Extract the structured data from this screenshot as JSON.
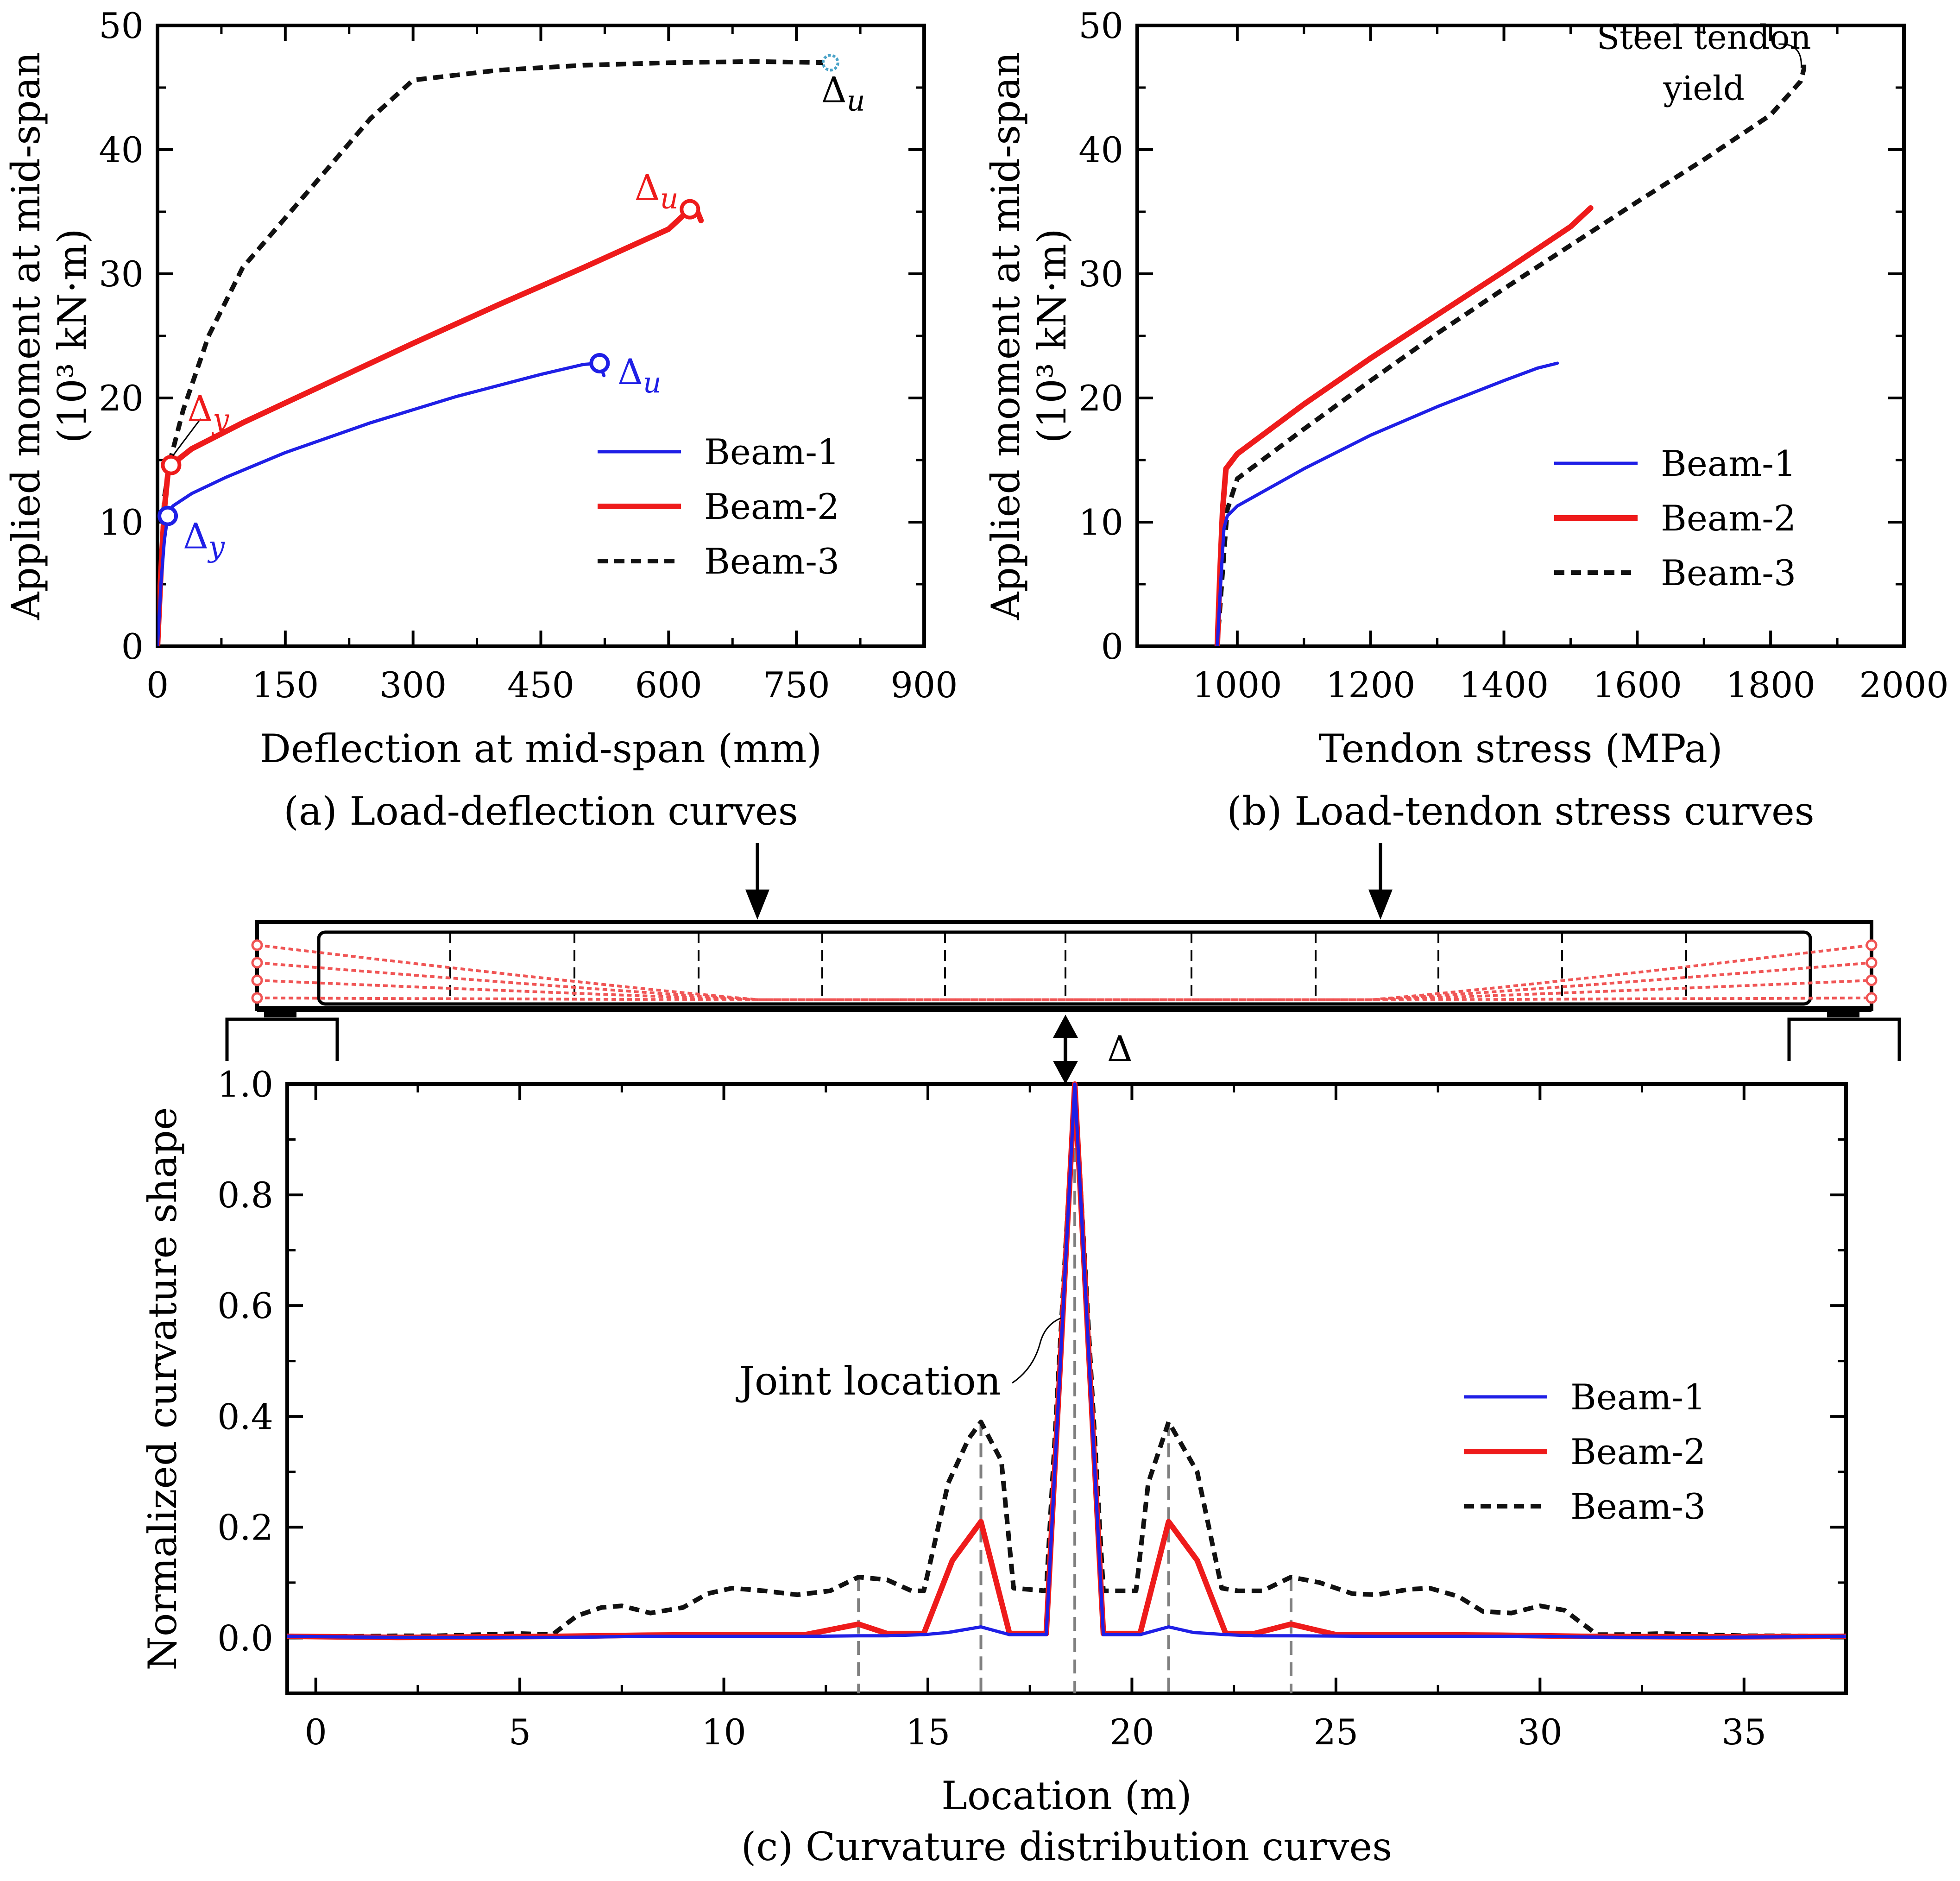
{
  "colors": {
    "beam1": "#1f1fe6",
    "beam2": "#ee1b1b",
    "beam3": "#111111",
    "tendon": "#f05555",
    "grid_dash": "#808080"
  },
  "chart_data": [
    {
      "id": "a",
      "type": "line",
      "caption": "(a) Load-deflection curves",
      "xlabel": "Deflection at mid-span (mm)",
      "ylabel": [
        "Applied moment at mid-span",
        "(10³ kN·m)"
      ],
      "xlim": [
        0,
        900
      ],
      "ylim": [
        0,
        50
      ],
      "xticks": [
        0,
        150,
        300,
        450,
        600,
        750,
        900
      ],
      "yticks": [
        0,
        10,
        20,
        30,
        40,
        50
      ],
      "legend_position": "right",
      "series": [
        {
          "name": "Beam-1",
          "style": "solid",
          "x": [
            0,
            4,
            8,
            12,
            18,
            40,
            80,
            150,
            250,
            350,
            450,
            500,
            519,
            524
          ],
          "y": [
            0,
            5,
            8.5,
            10.5,
            11.3,
            12.3,
            13.6,
            15.6,
            18.0,
            20.1,
            21.9,
            22.7,
            22.8,
            21.8
          ]
        },
        {
          "name": "Beam-2",
          "style": "solid",
          "x": [
            0,
            4,
            8,
            12,
            16,
            40,
            100,
            200,
            300,
            400,
            500,
            600,
            625,
            632,
            638
          ],
          "y": [
            0,
            6,
            11,
            13.8,
            14.6,
            15.9,
            18.0,
            21.2,
            24.4,
            27.5,
            30.5,
            33.6,
            35.2,
            35.3,
            34.3
          ]
        },
        {
          "name": "Beam-3",
          "style": "dashed",
          "x": [
            0,
            4,
            8,
            15,
            30,
            60,
            100,
            150,
            200,
            250,
            300,
            400,
            500,
            600,
            700,
            790
          ],
          "y": [
            0,
            6,
            12,
            15,
            19,
            25,
            30.5,
            34.5,
            38.5,
            42.5,
            45.6,
            46.4,
            46.8,
            47.0,
            47.1,
            47.0
          ]
        }
      ],
      "annotations": [
        {
          "text": "Δu",
          "series": "Beam-3",
          "x": 790,
          "y": 47.0
        },
        {
          "text": "Δu",
          "series": "Beam-2",
          "x": 625,
          "y": 35.2
        },
        {
          "text": "Δu",
          "series": "Beam-1",
          "x": 519,
          "y": 22.8
        },
        {
          "text": "Δy",
          "series": "Beam-2",
          "x": 16,
          "y": 14.6
        },
        {
          "text": "Δy",
          "series": "Beam-1",
          "x": 12,
          "y": 10.5
        }
      ]
    },
    {
      "id": "b",
      "type": "line",
      "caption": "(b) Load-tendon stress curves",
      "xlabel": "Tendon stress (MPa)",
      "ylabel": [
        "Applied moment at mid-span",
        "(10³ kN·m)"
      ],
      "xlim": [
        850,
        2000
      ],
      "ylim": [
        0,
        50
      ],
      "xticks": [
        1000,
        1200,
        1400,
        1600,
        1800,
        2000
      ],
      "yticks": [
        0,
        10,
        20,
        30,
        40,
        50
      ],
      "legend_position": "right",
      "series": [
        {
          "name": "Beam-1",
          "style": "solid",
          "x": [
            970,
            975,
            980,
            985,
            1000,
            1100,
            1200,
            1300,
            1400,
            1450,
            1480
          ],
          "y": [
            0,
            5,
            9.5,
            10.5,
            11.3,
            14.3,
            17.0,
            19.3,
            21.4,
            22.4,
            22.8
          ]
        },
        {
          "name": "Beam-2",
          "style": "solid",
          "x": [
            970,
            974,
            978,
            983,
            1000,
            1100,
            1200,
            1300,
            1400,
            1500,
            1530
          ],
          "y": [
            0,
            6,
            11,
            14.3,
            15.5,
            19.5,
            23.2,
            26.7,
            30.2,
            33.8,
            35.3
          ]
        },
        {
          "name": "Beam-3",
          "style": "dashed",
          "x": [
            970,
            978,
            985,
            1000,
            1050,
            1100,
            1200,
            1300,
            1400,
            1500,
            1600,
            1700,
            1800,
            1845,
            1850,
            1850
          ],
          "y": [
            0,
            6,
            11,
            13.5,
            15.5,
            17.5,
            21.4,
            25.2,
            28.8,
            32.3,
            35.8,
            39.2,
            42.8,
            45.5,
            46.5,
            47.2
          ]
        }
      ],
      "annotations": [
        {
          "text": [
            "Steel tendon",
            "yield"
          ],
          "series": "Beam-3",
          "x": 1848,
          "y": 47.0
        }
      ]
    },
    {
      "id": "c",
      "type": "line",
      "caption": "(c) Curvature distribution curves",
      "xlabel": "Location (m)",
      "ylabel": [
        "Normalized curvature shape"
      ],
      "xlim": [
        -0.7,
        37.5
      ],
      "ylim": [
        -0.1,
        1.0
      ],
      "xticks": [
        0,
        5,
        10,
        15,
        20,
        25,
        30,
        35
      ],
      "yticks": [
        0.0,
        0.2,
        0.4,
        0.6,
        0.8,
        1.0
      ],
      "legend_position": "right",
      "joint_locations": [
        13.3,
        16.3,
        18.6,
        20.9,
        23.9
      ],
      "series": [
        {
          "name": "Beam-1",
          "style": "solid",
          "x": [
            -0.7,
            2,
            4,
            6,
            8,
            10,
            12,
            13.3,
            14.0,
            14.9,
            15.5,
            16.3,
            17.0,
            17.9,
            18.6,
            19.3,
            20.2,
            20.9,
            21.5,
            22.3,
            23.0,
            24,
            26,
            28,
            30,
            32,
            34,
            37.5
          ],
          "y": [
            0.003,
            0.001,
            0.001,
            0.001,
            0.003,
            0.003,
            0.003,
            0.004,
            0.004,
            0.006,
            0.01,
            0.02,
            0.006,
            0.006,
            1.0,
            0.006,
            0.006,
            0.02,
            0.01,
            0.006,
            0.004,
            0.004,
            0.003,
            0.003,
            0.003,
            0.001,
            0.001,
            0.003
          ]
        },
        {
          "name": "Beam-2",
          "style": "solid",
          "x": [
            -0.7,
            2,
            4,
            6,
            8,
            10,
            12,
            13.3,
            14.0,
            14.9,
            15.6,
            16.3,
            17.0,
            17.9,
            18.6,
            19.3,
            20.2,
            20.9,
            21.6,
            22.3,
            23.0,
            23.9,
            25,
            27,
            29,
            31,
            34,
            37.5
          ],
          "y": [
            0.003,
            0.001,
            0.002,
            0.003,
            0.005,
            0.006,
            0.006,
            0.025,
            0.008,
            0.008,
            0.14,
            0.21,
            0.008,
            0.008,
            1.0,
            0.008,
            0.008,
            0.21,
            0.14,
            0.008,
            0.008,
            0.025,
            0.006,
            0.006,
            0.005,
            0.003,
            0.002,
            0.003
          ]
        },
        {
          "name": "Beam-3",
          "style": "dashed",
          "x": [
            -0.7,
            1,
            2,
            3,
            4,
            5,
            5.8,
            6.4,
            7.0,
            7.5,
            8.2,
            9.0,
            9.6,
            10.2,
            11.0,
            11.8,
            12.6,
            13.3,
            14.0,
            14.6,
            14.9,
            15.5,
            16.0,
            16.3,
            16.8,
            17.1,
            17.9,
            18.6,
            19.3,
            20.1,
            20.4,
            20.9,
            21.6,
            22.2,
            22.6,
            23.2,
            23.9,
            24.6,
            25.4,
            26.0,
            26.8,
            27.3,
            28.0,
            28.6,
            29.3,
            30.0,
            30.6,
            31.4,
            32.0,
            33.0,
            34.0,
            35.0,
            36.0,
            37.5
          ],
          "y": [
            0.003,
            0.003,
            0.004,
            0.004,
            0.006,
            0.008,
            0.006,
            0.04,
            0.055,
            0.058,
            0.045,
            0.055,
            0.08,
            0.09,
            0.085,
            0.078,
            0.085,
            0.11,
            0.105,
            0.085,
            0.085,
            0.28,
            0.36,
            0.39,
            0.32,
            0.09,
            0.085,
            1.0,
            0.085,
            0.085,
            0.28,
            0.39,
            0.3,
            0.09,
            0.085,
            0.085,
            0.11,
            0.1,
            0.08,
            0.078,
            0.088,
            0.09,
            0.075,
            0.048,
            0.045,
            0.058,
            0.05,
            0.006,
            0.006,
            0.008,
            0.006,
            0.004,
            0.004,
            0.003
          ]
        }
      ],
      "annotations": [
        {
          "text": "Joint location",
          "x": 18.6,
          "y": 0.58
        }
      ]
    }
  ],
  "beam_diagram": {
    "deflection_label": "Δ"
  }
}
